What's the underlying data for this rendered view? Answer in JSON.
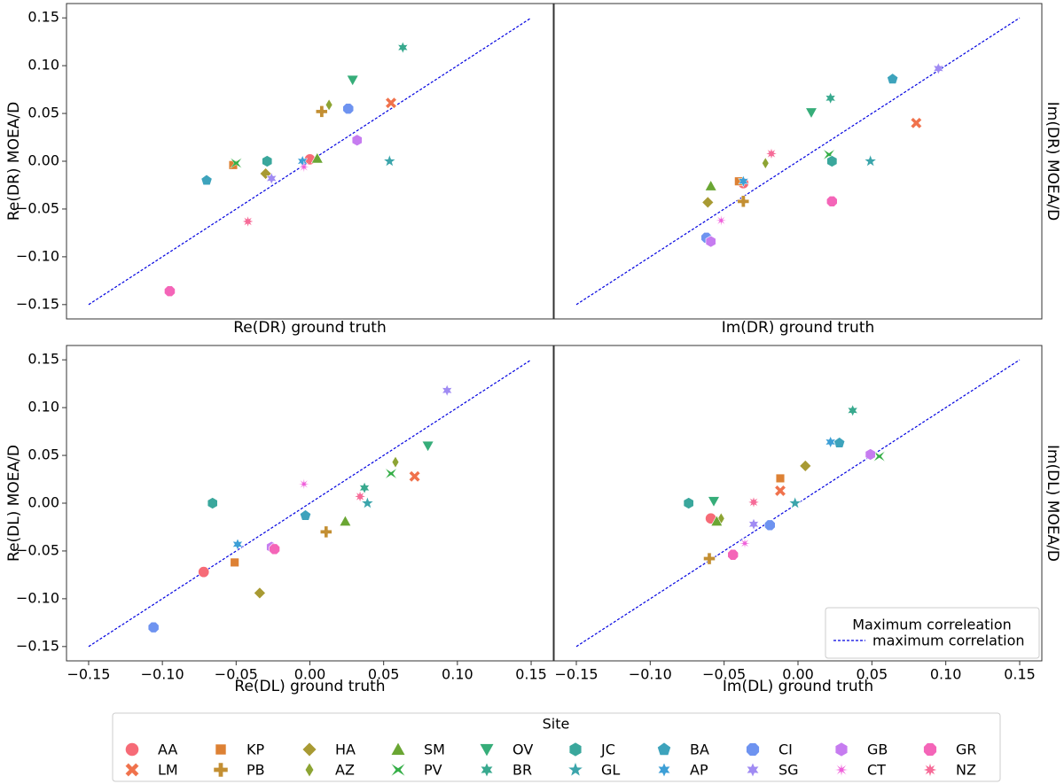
{
  "chart_data": {
    "type": "scatter",
    "diagonal_label": "maximum correlation",
    "legend_title": "Maximum correleation",
    "site_legend_title": "Site",
    "sites": [
      {
        "code": "AA",
        "color": "#f66b77",
        "marker": "circle"
      },
      {
        "code": "LM",
        "color": "#f0724c",
        "marker": "x"
      },
      {
        "code": "KP",
        "color": "#dd8134",
        "marker": "square"
      },
      {
        "code": "PB",
        "color": "#c38f33",
        "marker": "plus"
      },
      {
        "code": "HA",
        "color": "#a89a33",
        "marker": "diamond"
      },
      {
        "code": "AZ",
        "color": "#8da433",
        "marker": "thin_diamond"
      },
      {
        "code": "SM",
        "color": "#6aa633",
        "marker": "triangle_up"
      },
      {
        "code": "PV",
        "color": "#34ae46",
        "marker": "tri_bow"
      },
      {
        "code": "OV",
        "color": "#36ad79",
        "marker": "triangle_down"
      },
      {
        "code": "BR",
        "color": "#38a98e",
        "marker": "star6"
      },
      {
        "code": "JC",
        "color": "#3aa79c",
        "marker": "hexagon"
      },
      {
        "code": "GL",
        "color": "#3ba5ab",
        "marker": "star5"
      },
      {
        "code": "BA",
        "color": "#3da3bc",
        "marker": "pentagon"
      },
      {
        "code": "AP",
        "color": "#3d9fd6",
        "marker": "star6"
      },
      {
        "code": "CI",
        "color": "#6e93f0",
        "marker": "octagon"
      },
      {
        "code": "SG",
        "color": "#a08bf3",
        "marker": "star6"
      },
      {
        "code": "GB",
        "color": "#c67cf0",
        "marker": "hexagon"
      },
      {
        "code": "CT",
        "color": "#ef60da",
        "marker": "asterisk"
      },
      {
        "code": "GR",
        "color": "#f465b8",
        "marker": "octagon"
      },
      {
        "code": "NZ",
        "color": "#f66b98",
        "marker": "star8"
      }
    ],
    "axis": {
      "range": [
        -0.165,
        0.165
      ],
      "ticks": [
        -0.15,
        -0.1,
        -0.05,
        0.0,
        0.05,
        0.1,
        0.15
      ],
      "tick_labels": [
        "−0.15",
        "−0.10",
        "−0.05",
        "0.00",
        "0.05",
        "0.10",
        "0.15"
      ]
    },
    "panels": [
      {
        "id": "re-dr",
        "xlabel": "Re(DR) ground truth",
        "ylabel": "Re(DR) MOEA/D",
        "ylabel_side": "left",
        "points": [
          {
            "site": "AA",
            "x": 0.0,
            "y": 0.002
          },
          {
            "site": "LM",
            "x": 0.055,
            "y": 0.061
          },
          {
            "site": "KP",
            "x": -0.052,
            "y": -0.004
          },
          {
            "site": "PB",
            "x": 0.008,
            "y": 0.052
          },
          {
            "site": "HA",
            "x": -0.03,
            "y": -0.013
          },
          {
            "site": "AZ",
            "x": 0.013,
            "y": 0.059
          },
          {
            "site": "SM",
            "x": 0.005,
            "y": 0.003
          },
          {
            "site": "PV",
            "x": -0.05,
            "y": -0.002
          },
          {
            "site": "OV",
            "x": 0.029,
            "y": 0.085
          },
          {
            "site": "BR",
            "x": 0.063,
            "y": 0.119
          },
          {
            "site": "JC",
            "x": -0.029,
            "y": 0.0
          },
          {
            "site": "GL",
            "x": 0.054,
            "y": 0.0
          },
          {
            "site": "BA",
            "x": -0.07,
            "y": -0.02
          },
          {
            "site": "AP",
            "x": -0.005,
            "y": 0.0
          },
          {
            "site": "CI",
            "x": 0.026,
            "y": 0.055
          },
          {
            "site": "SG",
            "x": -0.026,
            "y": -0.018
          },
          {
            "site": "GB",
            "x": 0.032,
            "y": 0.022
          },
          {
            "site": "CT",
            "x": -0.004,
            "y": -0.006
          },
          {
            "site": "GR",
            "x": -0.095,
            "y": -0.136
          },
          {
            "site": "NZ",
            "x": -0.042,
            "y": -0.063
          }
        ]
      },
      {
        "id": "im-dr",
        "xlabel": "Im(DR) ground truth",
        "ylabel": "Im(DR) MOEA/D",
        "ylabel_side": "right",
        "points": [
          {
            "site": "AA",
            "x": -0.037,
            "y": -0.023
          },
          {
            "site": "LM",
            "x": 0.08,
            "y": 0.04
          },
          {
            "site": "KP",
            "x": -0.04,
            "y": -0.021
          },
          {
            "site": "PB",
            "x": -0.037,
            "y": -0.042
          },
          {
            "site": "HA",
            "x": -0.061,
            "y": -0.043
          },
          {
            "site": "AZ",
            "x": -0.022,
            "y": -0.002
          },
          {
            "site": "SM",
            "x": -0.059,
            "y": -0.026
          },
          {
            "site": "PV",
            "x": 0.021,
            "y": 0.007
          },
          {
            "site": "OV",
            "x": 0.009,
            "y": 0.051
          },
          {
            "site": "BR",
            "x": 0.022,
            "y": 0.066
          },
          {
            "site": "JC",
            "x": 0.023,
            "y": 0.0
          },
          {
            "site": "GL",
            "x": 0.049,
            "y": 0.0
          },
          {
            "site": "BA",
            "x": 0.064,
            "y": 0.086
          },
          {
            "site": "AP",
            "x": -0.037,
            "y": -0.021
          },
          {
            "site": "CI",
            "x": -0.062,
            "y": -0.08
          },
          {
            "site": "SG",
            "x": 0.095,
            "y": 0.097
          },
          {
            "site": "GB",
            "x": -0.059,
            "y": -0.084
          },
          {
            "site": "CT",
            "x": -0.052,
            "y": -0.062
          },
          {
            "site": "GR",
            "x": 0.023,
            "y": -0.042
          },
          {
            "site": "NZ",
            "x": -0.018,
            "y": 0.008
          }
        ]
      },
      {
        "id": "re-dl",
        "xlabel": "Re(DL) ground truth",
        "ylabel": "Re(DL) MOEA/D",
        "ylabel_side": "left",
        "points": [
          {
            "site": "AA",
            "x": -0.072,
            "y": -0.072
          },
          {
            "site": "LM",
            "x": 0.071,
            "y": 0.028
          },
          {
            "site": "KP",
            "x": -0.051,
            "y": -0.062
          },
          {
            "site": "PB",
            "x": 0.011,
            "y": -0.03
          },
          {
            "site": "HA",
            "x": -0.034,
            "y": -0.094
          },
          {
            "site": "AZ",
            "x": 0.058,
            "y": 0.043
          },
          {
            "site": "SM",
            "x": 0.024,
            "y": -0.019
          },
          {
            "site": "PV",
            "x": 0.055,
            "y": 0.031
          },
          {
            "site": "OV",
            "x": 0.08,
            "y": 0.06
          },
          {
            "site": "BR",
            "x": 0.037,
            "y": 0.016
          },
          {
            "site": "JC",
            "x": -0.066,
            "y": 0.0
          },
          {
            "site": "GL",
            "x": 0.039,
            "y": 0.0
          },
          {
            "site": "BA",
            "x": -0.003,
            "y": -0.013
          },
          {
            "site": "AP",
            "x": -0.049,
            "y": -0.043
          },
          {
            "site": "CI",
            "x": -0.106,
            "y": -0.13
          },
          {
            "site": "SG",
            "x": 0.093,
            "y": 0.118
          },
          {
            "site": "GB",
            "x": -0.026,
            "y": -0.046
          },
          {
            "site": "CT",
            "x": -0.004,
            "y": 0.02
          },
          {
            "site": "GR",
            "x": -0.024,
            "y": -0.048
          },
          {
            "site": "NZ",
            "x": 0.034,
            "y": 0.007
          }
        ]
      },
      {
        "id": "im-dl",
        "xlabel": "Im(DL) ground truth",
        "ylabel": "Im(DL) MOEA/D",
        "ylabel_side": "right",
        "points": [
          {
            "site": "AA",
            "x": -0.059,
            "y": -0.016
          },
          {
            "site": "LM",
            "x": -0.012,
            "y": 0.013
          },
          {
            "site": "KP",
            "x": -0.012,
            "y": 0.026
          },
          {
            "site": "PB",
            "x": -0.06,
            "y": -0.058
          },
          {
            "site": "HA",
            "x": 0.005,
            "y": 0.039
          },
          {
            "site": "AZ",
            "x": -0.052,
            "y": -0.016
          },
          {
            "site": "SM",
            "x": -0.055,
            "y": -0.019
          },
          {
            "site": "PV",
            "x": 0.055,
            "y": 0.049
          },
          {
            "site": "OV",
            "x": -0.057,
            "y": 0.002
          },
          {
            "site": "BR",
            "x": 0.037,
            "y": 0.097
          },
          {
            "site": "JC",
            "x": -0.074,
            "y": 0.0
          },
          {
            "site": "GL",
            "x": -0.002,
            "y": 0.0
          },
          {
            "site": "BA",
            "x": 0.028,
            "y": 0.063
          },
          {
            "site": "AP",
            "x": 0.022,
            "y": 0.064
          },
          {
            "site": "CI",
            "x": -0.019,
            "y": -0.023
          },
          {
            "site": "SG",
            "x": -0.03,
            "y": -0.022
          },
          {
            "site": "GB",
            "x": 0.049,
            "y": 0.051
          },
          {
            "site": "CT",
            "x": -0.036,
            "y": -0.042
          },
          {
            "site": "GR",
            "x": -0.044,
            "y": -0.054
          },
          {
            "site": "NZ",
            "x": -0.03,
            "y": 0.001
          }
        ]
      }
    ]
  }
}
